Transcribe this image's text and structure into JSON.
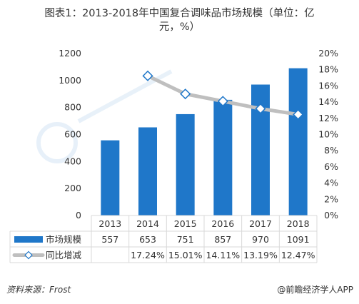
{
  "title_line1": "图表1：2013-2018年中国复合调味品市场规模（单位：亿",
  "title_line2": "元，%）",
  "source_label": "资料来源：",
  "source_value": "Frost",
  "brand_symbol": "@",
  "brand_name": "前瞻经济学人APP",
  "colors": {
    "bar": "#1F77C9",
    "line": "#BFBFBF",
    "marker_fill": "#FFFFFF",
    "marker_stroke": "#1F77C9",
    "grid": "#D9D9D9",
    "text": "#333333"
  },
  "chart_data": {
    "type": "bar",
    "categories": [
      "2013",
      "2014",
      "2015",
      "2016",
      "2017",
      "2018"
    ],
    "series": [
      {
        "name": "市场规模",
        "type": "bar",
        "axis": "left",
        "values": [
          557,
          653,
          751,
          857,
          970,
          1091
        ],
        "value_labels": [
          "557",
          "653",
          "751",
          "857",
          "970",
          "1091"
        ]
      },
      {
        "name": "同比增减",
        "type": "line",
        "axis": "right",
        "values": [
          null,
          17.24,
          15.01,
          14.11,
          13.19,
          12.47
        ],
        "value_labels": [
          "",
          "17.24%",
          "15.01%",
          "14.11%",
          "13.19%",
          "12.47%"
        ]
      }
    ],
    "ylim_left": [
      0,
      1200
    ],
    "yticks_left": [
      "0",
      "200",
      "400",
      "600",
      "800",
      "1000",
      "1200"
    ],
    "ylim_right": [
      0,
      20
    ],
    "yticks_right": [
      "0%",
      "2%",
      "4%",
      "6%",
      "8%",
      "10%",
      "12%",
      "14%",
      "16%",
      "18%",
      "20%"
    ],
    "grid": true,
    "legend": "data-table-below"
  }
}
